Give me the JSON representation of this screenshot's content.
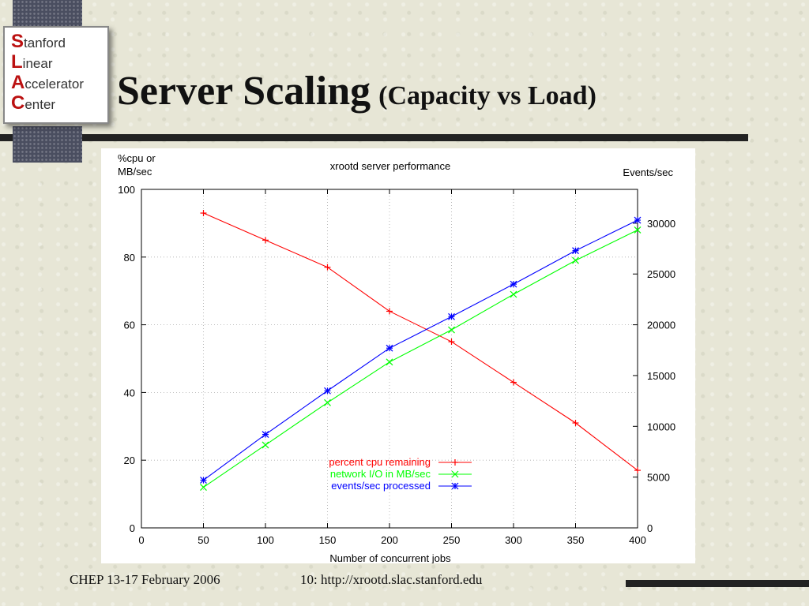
{
  "slide": {
    "title": "Server Scaling",
    "subtitle": "(Capacity vs Load)",
    "footer_left": "CHEP 13-17 February 2006",
    "footer_right": "10: http://xrootd.slac.stanford.edu"
  },
  "logo": {
    "lines": [
      {
        "initial": "S",
        "rest": "tanford"
      },
      {
        "initial": "L",
        "rest": "inear"
      },
      {
        "initial": "A",
        "rest": "ccelerator"
      },
      {
        "initial": "C",
        "rest": "enter"
      }
    ]
  },
  "chart_data": {
    "type": "line",
    "title": "xrootd server performance",
    "xlabel": "Number of concurrent jobs",
    "ylabel_left": "%cpu or\nMB/sec",
    "ylabel_right": "Events/sec",
    "xlim": [
      0,
      400
    ],
    "ylim_left": [
      0,
      100
    ],
    "ylim_right": [
      0,
      33333
    ],
    "x_ticks": [
      0,
      50,
      100,
      150,
      200,
      250,
      300,
      350,
      400
    ],
    "y_ticks_left": [
      0,
      20,
      40,
      60,
      80,
      100
    ],
    "y_ticks_right": [
      0,
      5000,
      10000,
      15000,
      20000,
      25000,
      30000
    ],
    "grid": true,
    "legend_position": "bottom-center",
    "x": [
      50,
      100,
      150,
      200,
      250,
      300,
      350,
      400
    ],
    "series": [
      {
        "name": "percent cpu remaining",
        "axis": "left",
        "color": "#ff0000",
        "marker": "+",
        "values": [
          93,
          85,
          77,
          64,
          55,
          43,
          31,
          17
        ]
      },
      {
        "name": "network I/O in MB/sec",
        "axis": "left",
        "color": "#00ff00",
        "marker": "x",
        "values": [
          12,
          24.5,
          37,
          49,
          58.5,
          69,
          79,
          88
        ]
      },
      {
        "name": "events/sec processed",
        "axis": "right",
        "color": "#0000ff",
        "marker": "*",
        "values": [
          4700,
          9200,
          13500,
          17700,
          20800,
          24000,
          27300,
          30300
        ]
      }
    ]
  }
}
